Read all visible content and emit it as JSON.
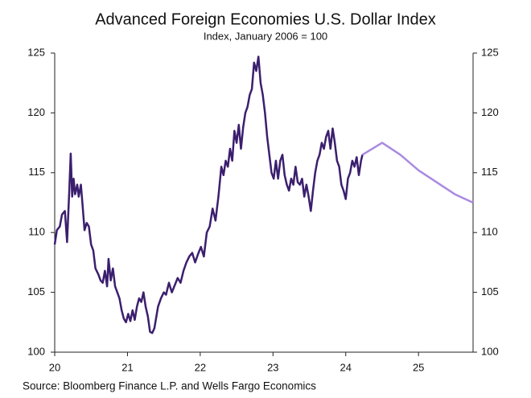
{
  "chart_data": {
    "type": "line",
    "title": "Advanced Foreign Economies U.S. Dollar Index",
    "subtitle": "Index, January 2006 = 100",
    "source": "Source: Bloomberg Finance L.P. and Wells Fargo Economics",
    "xlim": [
      20,
      25.75
    ],
    "xticks": [
      20,
      21,
      22,
      23,
      24,
      25
    ],
    "ylim": [
      100,
      125
    ],
    "yticks": [
      100,
      105,
      110,
      115,
      120,
      125
    ],
    "y_ticks_both_sides": true,
    "series": [
      {
        "color": "#3b1f6e",
        "x": [
          20.0,
          20.03,
          20.07,
          20.1,
          20.14,
          20.17,
          20.2,
          20.22,
          20.24,
          20.26,
          20.28,
          20.31,
          20.33,
          20.36,
          20.38,
          20.41,
          20.44,
          20.47,
          20.5,
          20.53,
          20.56,
          20.6,
          20.63,
          20.66,
          20.69,
          20.72,
          20.74,
          20.77,
          20.8,
          20.83,
          20.86,
          20.89,
          20.92,
          20.95,
          20.98,
          21.01,
          21.04,
          21.07,
          21.1,
          21.13,
          21.16,
          21.19,
          21.22,
          21.25,
          21.28,
          21.31,
          21.34,
          21.37,
          21.42,
          21.46,
          21.5,
          21.53,
          21.57,
          21.61,
          21.65,
          21.69,
          21.73,
          21.77,
          21.81,
          21.85,
          21.89,
          21.93,
          21.97,
          22.01,
          22.05,
          22.09,
          22.13,
          22.17,
          22.21,
          22.25,
          22.29,
          22.32,
          22.35,
          22.38,
          22.41,
          22.44,
          22.47,
          22.5,
          22.53,
          22.56,
          22.59,
          22.62,
          22.65,
          22.68,
          22.71,
          22.74,
          22.77,
          22.8,
          22.83,
          22.86,
          22.89,
          22.92,
          22.95,
          22.98,
          23.01,
          23.04,
          23.07,
          23.1,
          23.13,
          23.16,
          23.19,
          23.22,
          23.25,
          23.28,
          23.31,
          23.34,
          23.37,
          23.4,
          23.43,
          23.46,
          23.49,
          23.52,
          23.55,
          23.58,
          23.61,
          23.64,
          23.67,
          23.7,
          23.73,
          23.76,
          23.79,
          23.82,
          23.85,
          23.88,
          23.91,
          23.94,
          23.97,
          24.0,
          24.03,
          24.06,
          24.09,
          24.12,
          24.15,
          24.18,
          24.21,
          24.23
        ],
        "values": [
          109.0,
          110.2,
          110.5,
          111.5,
          111.8,
          109.2,
          113.5,
          116.6,
          113.0,
          114.5,
          113.2,
          114.0,
          113.0,
          114.0,
          112.5,
          110.2,
          110.8,
          110.5,
          109.0,
          108.5,
          107.0,
          106.5,
          106.0,
          105.8,
          106.8,
          105.5,
          107.8,
          106.0,
          107.0,
          105.5,
          105.0,
          104.5,
          103.5,
          102.8,
          102.5,
          103.2,
          102.6,
          103.5,
          102.7,
          103.8,
          104.5,
          104.2,
          105.0,
          103.8,
          103.0,
          101.7,
          101.6,
          102.0,
          103.8,
          104.5,
          105.0,
          104.8,
          105.8,
          105.0,
          105.6,
          106.2,
          105.8,
          106.8,
          107.5,
          108.0,
          108.3,
          107.5,
          108.2,
          108.8,
          108.0,
          110.0,
          110.5,
          112.0,
          111.0,
          113.0,
          115.5,
          114.8,
          116.0,
          115.5,
          117.0,
          116.0,
          118.5,
          117.5,
          119.0,
          117.0,
          118.8,
          120.0,
          120.5,
          121.5,
          122.0,
          124.2,
          123.5,
          124.7,
          122.5,
          121.5,
          120.0,
          118.0,
          116.5,
          115.0,
          114.5,
          116.0,
          114.5,
          116.0,
          116.5,
          114.8,
          114.0,
          113.5,
          114.5,
          114.0,
          115.5,
          114.2,
          114.0,
          114.5,
          113.0,
          114.0,
          113.0,
          111.8,
          113.5,
          115.0,
          116.0,
          116.5,
          117.5,
          117.0,
          118.0,
          118.5,
          117.0,
          118.7,
          117.5,
          116.0,
          115.5,
          114.0,
          113.5,
          112.8,
          114.5,
          115.0,
          116.0,
          115.5,
          116.3,
          114.8,
          116.0,
          116.5
        ]
      },
      {
        "color": "#a98ae0",
        "x": [
          24.23,
          24.5,
          24.75,
          25.0,
          25.25,
          25.5,
          25.75
        ],
        "values": [
          116.5,
          117.5,
          116.5,
          115.2,
          114.2,
          113.2,
          112.5
        ]
      }
    ]
  }
}
